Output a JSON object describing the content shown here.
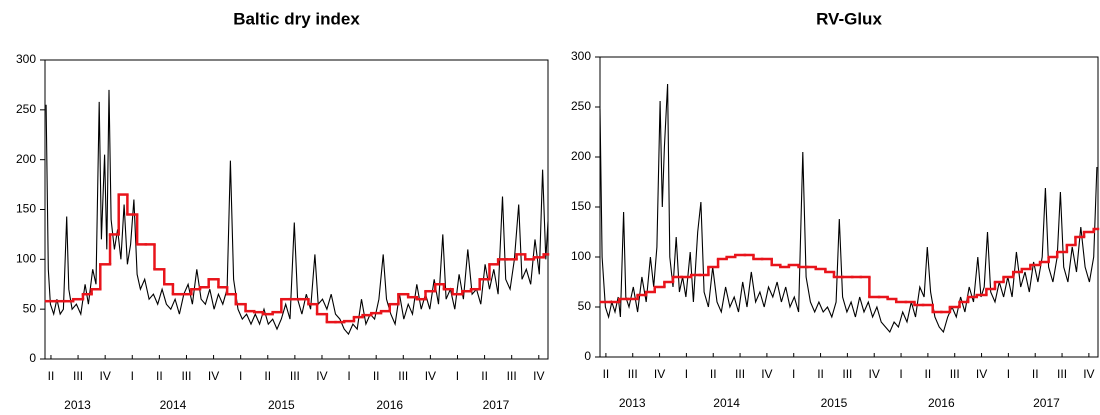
{
  "chart_data": [
    {
      "type": "line",
      "title": "Baltic dry index",
      "xlim": [
        2013.32,
        2017.96
      ],
      "ylim": [
        0,
        300
      ],
      "yticks": [
        0,
        50,
        100,
        150,
        200,
        250,
        300
      ],
      "xticks": [
        {
          "value": 2013.375,
          "label": "II"
        },
        {
          "value": 2013.625,
          "label": "III"
        },
        {
          "value": 2013.875,
          "label": "IV"
        },
        {
          "value": 2014.125,
          "label": "I"
        },
        {
          "value": 2014.375,
          "label": "II"
        },
        {
          "value": 2014.625,
          "label": "III"
        },
        {
          "value": 2014.875,
          "label": "IV"
        },
        {
          "value": 2015.125,
          "label": "I"
        },
        {
          "value": 2015.375,
          "label": "II"
        },
        {
          "value": 2015.625,
          "label": "III"
        },
        {
          "value": 2015.875,
          "label": "IV"
        },
        {
          "value": 2016.125,
          "label": "I"
        },
        {
          "value": 2016.375,
          "label": "II"
        },
        {
          "value": 2016.625,
          "label": "III"
        },
        {
          "value": 2016.875,
          "label": "IV"
        },
        {
          "value": 2017.125,
          "label": "I"
        },
        {
          "value": 2017.375,
          "label": "II"
        },
        {
          "value": 2017.625,
          "label": "III"
        },
        {
          "value": 2017.875,
          "label": "IV"
        }
      ],
      "xyears": [
        {
          "value": 2013.62,
          "label": "2013"
        },
        {
          "value": 2014.5,
          "label": "2014"
        },
        {
          "value": 2015.5,
          "label": "2015"
        },
        {
          "value": 2016.5,
          "label": "2016"
        },
        {
          "value": 2017.48,
          "label": "2017"
        }
      ],
      "series": [
        {
          "color": "#000000",
          "style": "line",
          "x": [
            2013.33,
            2013.35,
            2013.37,
            2013.4,
            2013.43,
            2013.46,
            2013.49,
            2013.52,
            2013.54,
            2013.57,
            2013.61,
            2013.65,
            2013.69,
            2013.72,
            2013.76,
            2013.79,
            2013.82,
            2013.84,
            2013.87,
            2013.89,
            2013.91,
            2013.93,
            2013.96,
            2013.99,
            2014.02,
            2014.05,
            2014.08,
            2014.11,
            2014.14,
            2014.17,
            2014.2,
            2014.24,
            2014.28,
            2014.32,
            2014.36,
            2014.4,
            2014.44,
            2014.48,
            2014.52,
            2014.56,
            2014.6,
            2014.64,
            2014.68,
            2014.72,
            2014.76,
            2014.8,
            2014.84,
            2014.88,
            2014.92,
            2014.96,
            2015.0,
            2015.03,
            2015.06,
            2015.1,
            2015.14,
            2015.18,
            2015.22,
            2015.26,
            2015.3,
            2015.34,
            2015.38,
            2015.42,
            2015.46,
            2015.5,
            2015.54,
            2015.58,
            2015.62,
            2015.65,
            2015.69,
            2015.73,
            2015.77,
            2015.81,
            2015.84,
            2015.88,
            2015.92,
            2015.96,
            2016.0,
            2016.04,
            2016.08,
            2016.12,
            2016.16,
            2016.2,
            2016.24,
            2016.28,
            2016.32,
            2016.36,
            2016.4,
            2016.44,
            2016.47,
            2016.51,
            2016.55,
            2016.59,
            2016.63,
            2016.67,
            2016.71,
            2016.75,
            2016.79,
            2016.83,
            2016.87,
            2016.91,
            2016.95,
            2016.99,
            2017.02,
            2017.06,
            2017.1,
            2017.14,
            2017.18,
            2017.22,
            2017.26,
            2017.3,
            2017.34,
            2017.38,
            2017.42,
            2017.46,
            2017.5,
            2017.54,
            2017.57,
            2017.61,
            2017.65,
            2017.69,
            2017.72,
            2017.76,
            2017.8,
            2017.84,
            2017.88,
            2017.91,
            2017.94,
            2017.96
          ],
          "values": [
            255,
            90,
            55,
            45,
            60,
            45,
            50,
            143,
            70,
            50,
            55,
            45,
            75,
            55,
            90,
            75,
            258,
            120,
            205,
            110,
            270,
            140,
            110,
            130,
            100,
            155,
            95,
            115,
            160,
            85,
            70,
            80,
            60,
            65,
            55,
            70,
            55,
            50,
            60,
            45,
            65,
            75,
            55,
            90,
            60,
            55,
            70,
            50,
            65,
            55,
            70,
            199,
            80,
            50,
            40,
            45,
            35,
            45,
            35,
            50,
            35,
            40,
            30,
            40,
            55,
            40,
            137,
            60,
            45,
            65,
            50,
            105,
            55,
            60,
            50,
            65,
            45,
            40,
            30,
            25,
            35,
            30,
            60,
            35,
            45,
            40,
            60,
            105,
            60,
            45,
            35,
            65,
            40,
            55,
            45,
            75,
            50,
            65,
            50,
            80,
            55,
            125,
            60,
            70,
            50,
            85,
            60,
            110,
            65,
            70,
            55,
            95,
            70,
            90,
            65,
            163,
            80,
            70,
            100,
            155,
            80,
            90,
            75,
            120,
            85,
            190,
            100,
            138
          ]
        },
        {
          "color": "#e8141b",
          "style": "step",
          "x": [
            2013.33,
            2013.42,
            2013.5,
            2013.58,
            2013.67,
            2013.75,
            2013.83,
            2013.92,
            2014.0,
            2014.08,
            2014.17,
            2014.25,
            2014.33,
            2014.42,
            2014.5,
            2014.58,
            2014.67,
            2014.75,
            2014.83,
            2014.92,
            2015.0,
            2015.08,
            2015.17,
            2015.25,
            2015.33,
            2015.42,
            2015.5,
            2015.58,
            2015.67,
            2015.75,
            2015.83,
            2015.92,
            2016.0,
            2016.08,
            2016.17,
            2016.25,
            2016.33,
            2016.42,
            2016.5,
            2016.58,
            2016.67,
            2016.75,
            2016.83,
            2016.92,
            2017.0,
            2017.08,
            2017.17,
            2017.25,
            2017.33,
            2017.42,
            2017.5,
            2017.58,
            2017.67,
            2017.75,
            2017.83,
            2017.92
          ],
          "values": [
            58,
            58,
            58,
            60,
            65,
            70,
            95,
            125,
            165,
            145,
            115,
            115,
            90,
            75,
            65,
            65,
            70,
            72,
            80,
            72,
            65,
            55,
            48,
            47,
            45,
            47,
            60,
            60,
            60,
            55,
            45,
            37,
            37,
            38,
            42,
            44,
            46,
            48,
            55,
            65,
            62,
            60,
            68,
            75,
            70,
            65,
            68,
            70,
            80,
            95,
            100,
            100,
            105,
            100,
            102,
            105
          ]
        }
      ]
    },
    {
      "type": "line",
      "title": "RV-Glux",
      "xlim": [
        2013.32,
        2017.96
      ],
      "ylim": [
        0,
        300
      ],
      "yticks": [
        0,
        50,
        100,
        150,
        200,
        250,
        300
      ],
      "xticks": [
        {
          "value": 2013.375,
          "label": "II"
        },
        {
          "value": 2013.625,
          "label": "III"
        },
        {
          "value": 2013.875,
          "label": "IV"
        },
        {
          "value": 2014.125,
          "label": "I"
        },
        {
          "value": 2014.375,
          "label": "II"
        },
        {
          "value": 2014.625,
          "label": "III"
        },
        {
          "value": 2014.875,
          "label": "IV"
        },
        {
          "value": 2015.125,
          "label": "I"
        },
        {
          "value": 2015.375,
          "label": "II"
        },
        {
          "value": 2015.625,
          "label": "III"
        },
        {
          "value": 2015.875,
          "label": "IV"
        },
        {
          "value": 2016.125,
          "label": "I"
        },
        {
          "value": 2016.375,
          "label": "II"
        },
        {
          "value": 2016.625,
          "label": "III"
        },
        {
          "value": 2016.875,
          "label": "IV"
        },
        {
          "value": 2017.125,
          "label": "I"
        },
        {
          "value": 2017.375,
          "label": "II"
        },
        {
          "value": 2017.625,
          "label": "III"
        },
        {
          "value": 2017.875,
          "label": "IV"
        }
      ],
      "xyears": [
        {
          "value": 2013.62,
          "label": "2013"
        },
        {
          "value": 2014.5,
          "label": "2014"
        },
        {
          "value": 2015.5,
          "label": "2015"
        },
        {
          "value": 2016.5,
          "label": "2016"
        },
        {
          "value": 2017.48,
          "label": "2017"
        }
      ],
      "series": [
        {
          "color": "#000000",
          "style": "line",
          "x": [
            2013.32,
            2013.34,
            2013.37,
            2013.4,
            2013.43,
            2013.46,
            2013.49,
            2013.51,
            2013.54,
            2013.56,
            2013.59,
            2013.63,
            2013.67,
            2013.71,
            2013.75,
            2013.79,
            2013.82,
            2013.85,
            2013.88,
            2013.9,
            2013.92,
            2013.95,
            2013.97,
            2014.0,
            2014.03,
            2014.06,
            2014.09,
            2014.12,
            2014.16,
            2014.19,
            2014.23,
            2014.26,
            2014.29,
            2014.33,
            2014.37,
            2014.41,
            2014.45,
            2014.49,
            2014.53,
            2014.57,
            2014.61,
            2014.65,
            2014.69,
            2014.73,
            2014.77,
            2014.81,
            2014.85,
            2014.89,
            2014.93,
            2014.97,
            2015.01,
            2015.05,
            2015.09,
            2015.13,
            2015.17,
            2015.21,
            2015.24,
            2015.28,
            2015.32,
            2015.36,
            2015.4,
            2015.44,
            2015.48,
            2015.52,
            2015.55,
            2015.58,
            2015.62,
            2015.66,
            2015.7,
            2015.74,
            2015.78,
            2015.82,
            2015.86,
            2015.9,
            2015.94,
            2015.98,
            2016.02,
            2016.06,
            2016.1,
            2016.14,
            2016.18,
            2016.22,
            2016.26,
            2016.3,
            2016.34,
            2016.37,
            2016.4,
            2016.44,
            2016.48,
            2016.52,
            2016.56,
            2016.6,
            2016.64,
            2016.68,
            2016.72,
            2016.76,
            2016.8,
            2016.84,
            2016.87,
            2016.9,
            2016.93,
            2016.96,
            2017.0,
            2017.04,
            2017.08,
            2017.12,
            2017.16,
            2017.2,
            2017.24,
            2017.28,
            2017.32,
            2017.36,
            2017.4,
            2017.44,
            2017.47,
            2017.5,
            2017.54,
            2017.58,
            2017.61,
            2017.64,
            2017.68,
            2017.72,
            2017.76,
            2017.8,
            2017.84,
            2017.88,
            2017.92,
            2017.95
          ],
          "values": [
            248,
            100,
            50,
            40,
            55,
            45,
            60,
            40,
            145,
            60,
            50,
            70,
            45,
            80,
            55,
            100,
            70,
            110,
            256,
            150,
            210,
            273,
            100,
            70,
            120,
            65,
            80,
            60,
            105,
            55,
            125,
            155,
            65,
            50,
            90,
            55,
            45,
            70,
            50,
            60,
            45,
            75,
            50,
            85,
            55,
            65,
            50,
            70,
            60,
            75,
            55,
            70,
            50,
            60,
            45,
            205,
            80,
            55,
            45,
            55,
            45,
            50,
            40,
            55,
            138,
            60,
            45,
            55,
            40,
            60,
            45,
            55,
            40,
            50,
            35,
            30,
            25,
            35,
            30,
            45,
            35,
            55,
            40,
            70,
            60,
            110,
            65,
            40,
            30,
            25,
            40,
            50,
            40,
            60,
            45,
            70,
            55,
            100,
            60,
            70,
            125,
            65,
            55,
            75,
            60,
            80,
            60,
            105,
            70,
            85,
            65,
            95,
            75,
            100,
            169,
            90,
            75,
            100,
            165,
            90,
            75,
            110,
            85,
            130,
            90,
            75,
            100,
            190
          ]
        },
        {
          "color": "#e8141b",
          "style": "step",
          "x": [
            2013.33,
            2013.42,
            2013.5,
            2013.58,
            2013.67,
            2013.75,
            2013.83,
            2013.92,
            2014.0,
            2014.08,
            2014.17,
            2014.25,
            2014.33,
            2014.42,
            2014.5,
            2014.58,
            2014.67,
            2014.75,
            2014.83,
            2014.92,
            2015.0,
            2015.08,
            2015.17,
            2015.25,
            2015.33,
            2015.42,
            2015.5,
            2015.58,
            2015.67,
            2015.75,
            2015.83,
            2015.92,
            2016.0,
            2016.08,
            2016.17,
            2016.25,
            2016.33,
            2016.42,
            2016.5,
            2016.58,
            2016.67,
            2016.75,
            2016.83,
            2016.92,
            2017.0,
            2017.08,
            2017.17,
            2017.25,
            2017.33,
            2017.42,
            2017.5,
            2017.58,
            2017.67,
            2017.75,
            2017.83,
            2017.92
          ],
          "values": [
            55,
            55,
            58,
            58,
            62,
            65,
            70,
            75,
            80,
            80,
            82,
            82,
            90,
            98,
            100,
            102,
            102,
            98,
            98,
            92,
            90,
            92,
            90,
            90,
            88,
            85,
            80,
            80,
            80,
            80,
            60,
            60,
            58,
            55,
            55,
            52,
            52,
            45,
            45,
            50,
            55,
            60,
            62,
            68,
            75,
            80,
            85,
            88,
            92,
            95,
            100,
            105,
            112,
            120,
            125,
            128
          ]
        }
      ]
    }
  ]
}
